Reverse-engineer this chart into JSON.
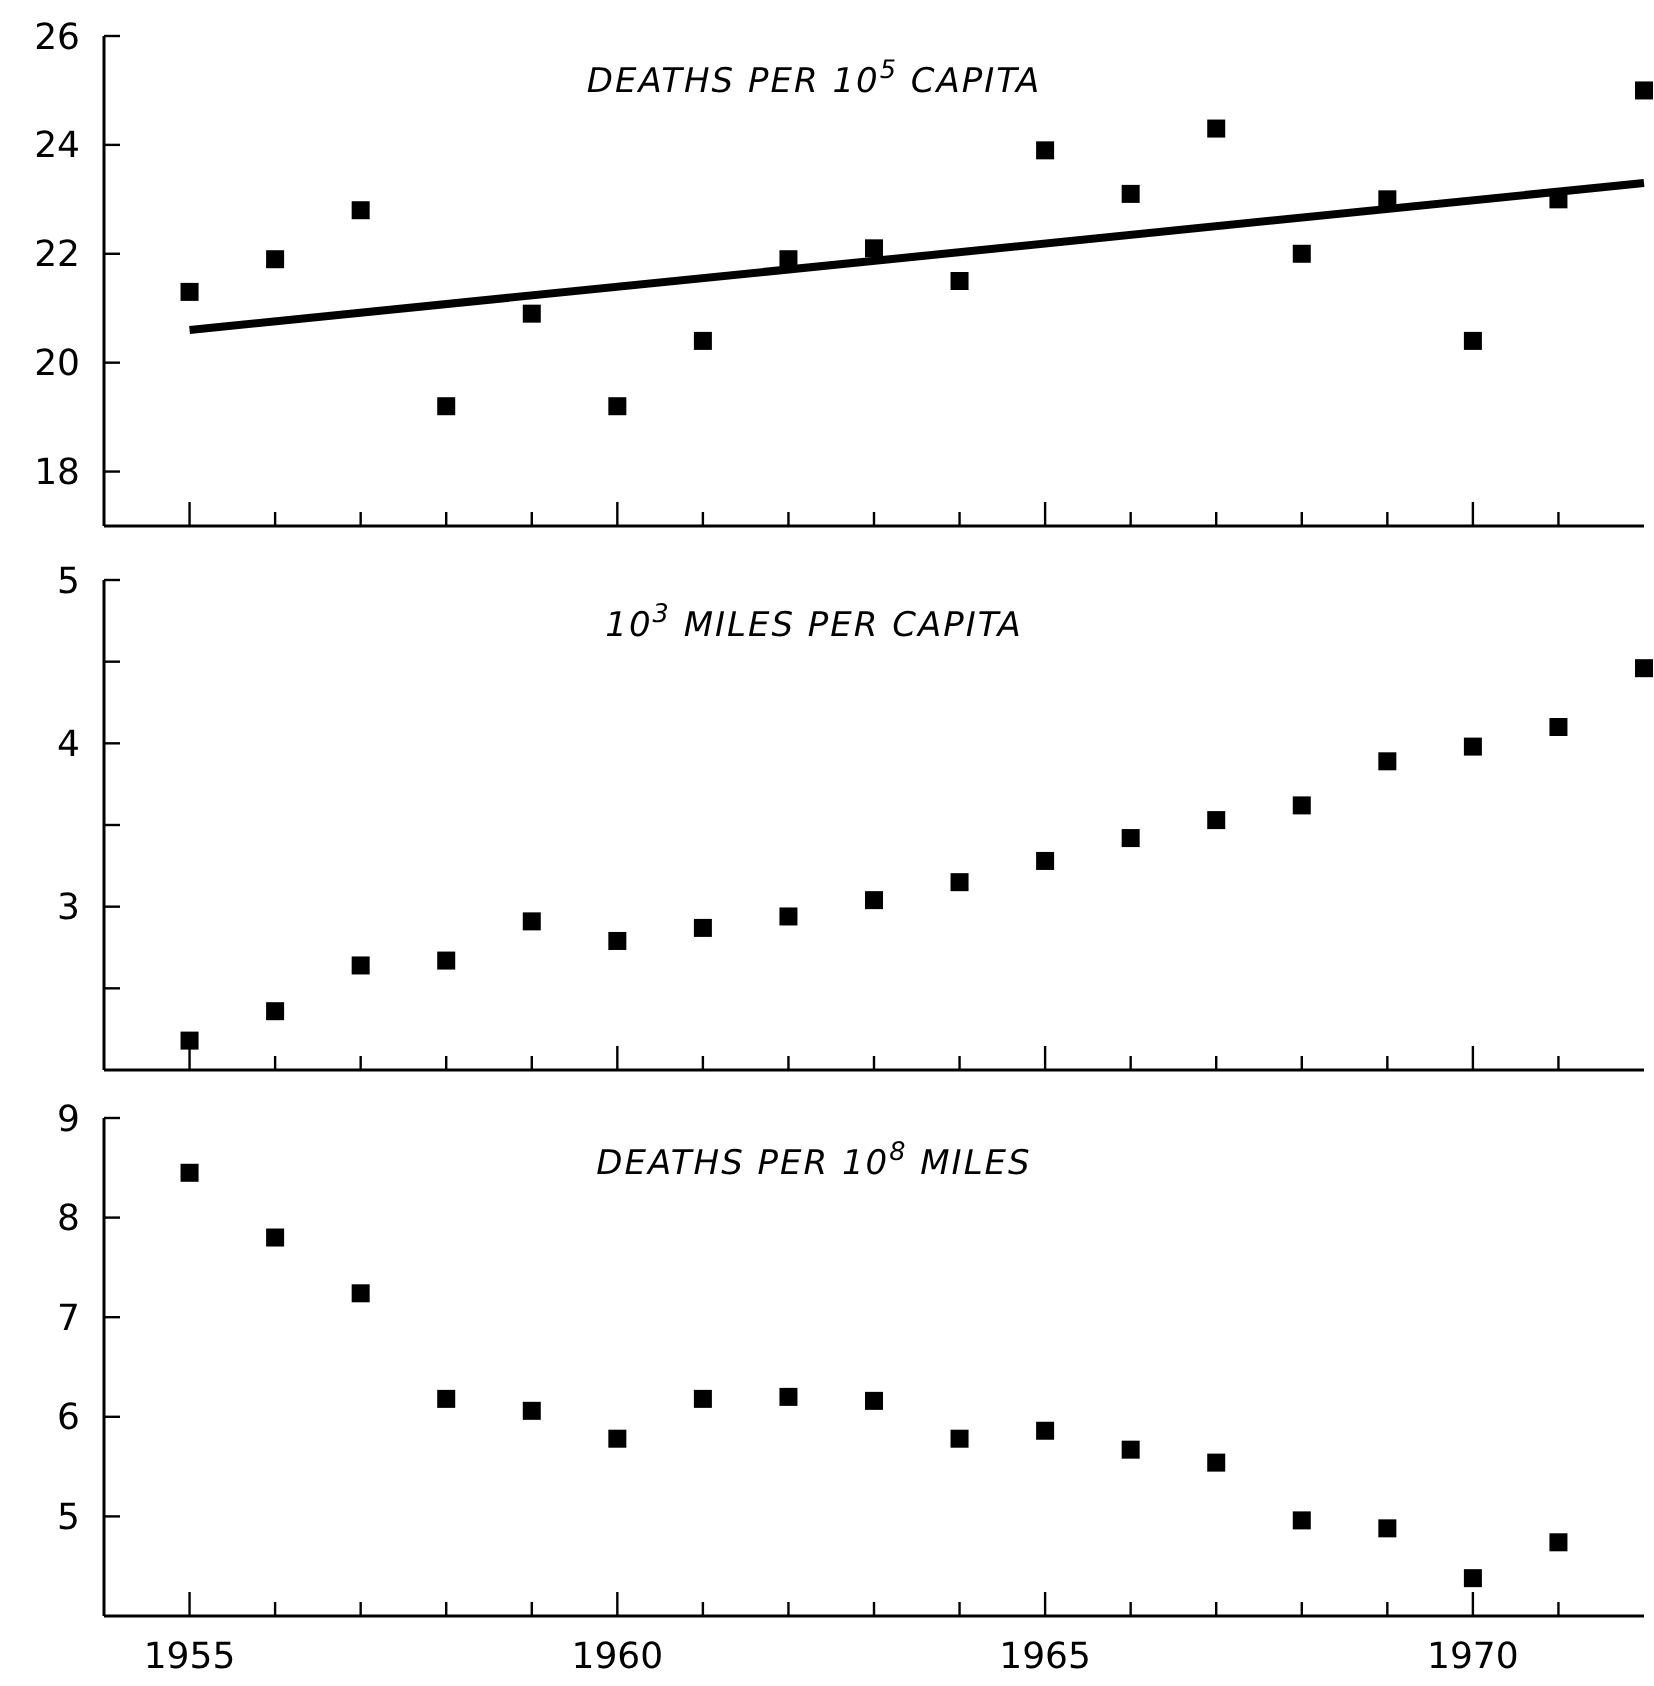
{
  "chart_data": [
    {
      "type": "scatter",
      "title": "DEATHS PER 10$^{5}$ CAPITA",
      "marker": "square",
      "tick_labels": "y",
      "xlim": [
        1954,
        1972
      ],
      "xticks": [
        {
          "value": 1955,
          "label": null
        },
        {
          "value": 1956,
          "label": null
        },
        {
          "value": 1957,
          "label": null
        },
        {
          "value": 1958,
          "label": null
        },
        {
          "value": 1959,
          "label": null
        },
        {
          "value": 1960,
          "label": null
        },
        {
          "value": 1961,
          "label": null
        },
        {
          "value": 1962,
          "label": null
        },
        {
          "value": 1963,
          "label": null
        },
        {
          "value": 1964,
          "label": null
        },
        {
          "value": 1965,
          "label": null
        },
        {
          "value": 1966,
          "label": null
        },
        {
          "value": 1967,
          "label": null
        },
        {
          "value": 1968,
          "label": null
        },
        {
          "value": 1969,
          "label": null
        },
        {
          "value": 1970,
          "label": null
        },
        {
          "value": 1971,
          "label": null
        }
      ],
      "ylim": [
        17,
        26
      ],
      "yticks": [
        18,
        20,
        22,
        24,
        26
      ],
      "series": [
        {
          "color": "#000000",
          "x": [
            1955,
            1956,
            1957,
            1958,
            1959,
            1960,
            1961,
            1962,
            1963,
            1964,
            1965,
            1966,
            1967,
            1968,
            1969,
            1970,
            1971,
            1972
          ],
          "values": [
            21.3,
            21.9,
            22.8,
            19.2,
            20.9,
            19.2,
            20.4,
            21.9,
            22.1,
            21.5,
            23.9,
            23.1,
            24.3,
            22.0,
            23.0,
            20.4,
            23.0,
            25.0
          ]
        },
        {
          "type": "line",
          "marker": "none",
          "color": "#000000",
          "x": [
            1955,
            1972
          ],
          "values": [
            20.6,
            23.3
          ]
        }
      ]
    },
    {
      "type": "scatter",
      "title": "10$^{3}$ MILES PER CAPITA",
      "marker": "square",
      "tick_labels": "y",
      "xlim": [
        1954,
        1972
      ],
      "xticks": [
        {
          "value": 1955,
          "label": null
        },
        {
          "value": 1956,
          "label": null
        },
        {
          "value": 1957,
          "label": null
        },
        {
          "value": 1958,
          "label": null
        },
        {
          "value": 1959,
          "label": null
        },
        {
          "value": 1960,
          "label": null
        },
        {
          "value": 1961,
          "label": null
        },
        {
          "value": 1962,
          "label": null
        },
        {
          "value": 1963,
          "label": null
        },
        {
          "value": 1964,
          "label": null
        },
        {
          "value": 1965,
          "label": null
        },
        {
          "value": 1966,
          "label": null
        },
        {
          "value": 1967,
          "label": null
        },
        {
          "value": 1968,
          "label": null
        },
        {
          "value": 1969,
          "label": null
        },
        {
          "value": 1970,
          "label": null
        },
        {
          "value": 1971,
          "label": null
        }
      ],
      "ylim": [
        2,
        5
      ],
      "yticks": [
        {
          "value": 2.5,
          "label": null
        },
        3,
        {
          "value": 3.5,
          "label": null
        },
        4,
        {
          "value": 4.5,
          "label": null
        },
        5
      ],
      "series": [
        {
          "color": "#000000",
          "x": [
            1955,
            1956,
            1957,
            1958,
            1959,
            1960,
            1961,
            1962,
            1963,
            1964,
            1965,
            1966,
            1967,
            1968,
            1969,
            1970,
            1971,
            1972
          ],
          "values": [
            2.18,
            2.36,
            2.64,
            2.67,
            2.91,
            2.79,
            2.87,
            2.94,
            3.04,
            3.15,
            3.28,
            3.42,
            3.53,
            3.62,
            3.89,
            3.98,
            4.1,
            4.46
          ]
        }
      ]
    },
    {
      "type": "scatter",
      "title": "DEATHS PER 10$^{8}$ MILES",
      "marker": "square",
      "xlim": [
        1954,
        1972
      ],
      "xticks": [
        1955,
        {
          "value": 1956,
          "label": null
        },
        {
          "value": 1957,
          "label": null
        },
        {
          "value": 1958,
          "label": null
        },
        {
          "value": 1959,
          "label": null
        },
        1960,
        {
          "value": 1961,
          "label": null
        },
        {
          "value": 1962,
          "label": null
        },
        {
          "value": 1963,
          "label": null
        },
        {
          "value": 1964,
          "label": null
        },
        1965,
        {
          "value": 1966,
          "label": null
        },
        {
          "value": 1967,
          "label": null
        },
        {
          "value": 1968,
          "label": null
        },
        {
          "value": 1969,
          "label": null
        },
        1970,
        {
          "value": 1971,
          "label": null
        }
      ],
      "ylim": [
        4,
        9
      ],
      "yticks": [
        5,
        6,
        7,
        8,
        9
      ],
      "series": [
        {
          "color": "#000000",
          "x": [
            1955,
            1956,
            1957,
            1958,
            1959,
            1960,
            1961,
            1962,
            1963,
            1964,
            1965,
            1966,
            1967,
            1968,
            1969,
            1970,
            1971
          ],
          "values": [
            8.45,
            7.8,
            7.24,
            6.18,
            6.06,
            5.78,
            6.18,
            6.2,
            6.16,
            5.78,
            5.86,
            5.67,
            5.54,
            4.96,
            4.88,
            4.38,
            4.74
          ]
        }
      ]
    }
  ]
}
